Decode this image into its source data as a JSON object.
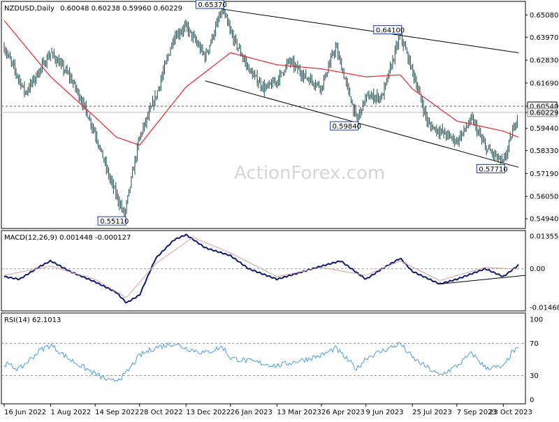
{
  "header": {
    "symbol_line": "NZDUSD,Daily",
    "ohlc": "0.60048 0.60238 0.59960 0.60229",
    "macd_line": "MACD(12,26,9) 0.001448 -0.000127",
    "rsi_line": "RSI(14) 62.1013"
  },
  "watermark": "ActionForex.com",
  "colors": {
    "price_bars": "#1e4a4a",
    "ma": "#e8262c",
    "macd": "#0d1a6e",
    "signal": "#d9a0a0",
    "rsi": "#4a9ed8",
    "trendlines": "#000000",
    "label_border": "#1a3aa0",
    "current_price_box": "#e8e8e8"
  },
  "chart_data": [
    {
      "type": "ohlc",
      "panel": "price",
      "instrument": "NZDUSD",
      "timeframe": "Daily",
      "ylim": [
        0.5449,
        0.6572
      ],
      "y_ticks": [
        "0.65080",
        "0.63970",
        "0.62830",
        "0.61690",
        "0.60540",
        "0.60229",
        "0.59440",
        "0.58330",
        "0.57190",
        "0.56050",
        "0.54940"
      ],
      "x_ticks": [
        "16 Jun 2022",
        "1 Aug 2022",
        "14 Sep 2022",
        "28 Oct 2022",
        "13 Dec 2022",
        "26 Jan 2023",
        "13 Mar 2023",
        "26 Apr 2023",
        "9 Jun 2023",
        "25 Jul 2023",
        "7 Sep 2023",
        "23 Oct 2023"
      ],
      "price_path": [
        [
          "16 Jun 2022",
          0.6345
        ],
        [
          "7 Jul 2022",
          0.612
        ],
        [
          "1 Aug 2022",
          0.632
        ],
        [
          "20 Aug 2022",
          0.62
        ],
        [
          "1 Sep 2022",
          0.608
        ],
        [
          "14 Sep 2022",
          0.592
        ],
        [
          "28 Sep 2022",
          0.57
        ],
        [
          "13 Oct 2022",
          0.5511
        ],
        [
          "28 Oct 2022",
          0.59
        ],
        [
          "13 Nov 2022",
          0.61
        ],
        [
          "1 Dec 2022",
          0.64
        ],
        [
          "13 Dec 2022",
          0.645
        ],
        [
          "1 Jan 2023",
          0.63
        ],
        [
          "18 Jan 2023",
          0.6537
        ],
        [
          "26 Jan 2023",
          0.642
        ],
        [
          "15 Feb 2023",
          0.622
        ],
        [
          "1 Mar 2023",
          0.614
        ],
        [
          "13 Mar 2023",
          0.618
        ],
        [
          "25 Mar 2023",
          0.628
        ],
        [
          "10 Apr 2023",
          0.62
        ],
        [
          "26 Apr 2023",
          0.615
        ],
        [
          "10 May 2023",
          0.635
        ],
        [
          "31 May 2023",
          0.5984
        ],
        [
          "9 Jun 2023",
          0.61
        ],
        [
          "25 Jun 2023",
          0.61
        ],
        [
          "13 Jul 2023",
          0.641
        ],
        [
          "25 Jul 2023",
          0.623
        ],
        [
          "10 Aug 2023",
          0.596
        ],
        [
          "25 Aug 2023",
          0.592
        ],
        [
          "7 Sep 2023",
          0.588
        ],
        [
          "22 Sep 2023",
          0.599
        ],
        [
          "5 Oct 2023",
          0.585
        ],
        [
          "23 Oct 2023",
          0.5771
        ],
        [
          "7 Nov 2023",
          0.6023
        ]
      ],
      "annotations": [
        {
          "text": "0.65370",
          "value": 0.6537,
          "date": "18 Jan 2023"
        },
        {
          "text": "0.64100",
          "value": 0.641,
          "date": "13 Jul 2023"
        },
        {
          "text": "0.59840",
          "value": 0.5984,
          "date": "31 May 2023"
        },
        {
          "text": "0.57710",
          "value": 0.5771,
          "date": "23 Oct 2023"
        },
        {
          "text": "0.55110",
          "value": 0.5511,
          "date": "13 Oct 2022"
        }
      ],
      "moving_average_path": [
        [
          "16 Jun 2022",
          0.648
        ],
        [
          "1 Aug 2022",
          0.62
        ],
        [
          "14 Sep 2022",
          0.6
        ],
        [
          "5 Oct 2022",
          0.59
        ],
        [
          "28 Oct 2022",
          0.586
        ],
        [
          "13 Dec 2022",
          0.615
        ],
        [
          "26 Jan 2023",
          0.632
        ],
        [
          "13 Mar 2023",
          0.626
        ],
        [
          "26 Apr 2023",
          0.624
        ],
        [
          "9 Jun 2023",
          0.62
        ],
        [
          "13 Jul 2023",
          0.621
        ],
        [
          "25 Jul 2023",
          0.614
        ],
        [
          "7 Sep 2023",
          0.598
        ],
        [
          "23 Oct 2023",
          0.593
        ],
        [
          "7 Nov 2023",
          0.59
        ]
      ],
      "trendlines": [
        {
          "from": [
            "18 Jan 2023",
            0.6537
          ],
          "to": [
            "7 Nov 2023",
            0.632
          ]
        },
        {
          "from": [
            "1 Jan 2023",
            0.618
          ],
          "to": [
            "7 Nov 2023",
            0.575
          ]
        }
      ],
      "horizontal_levels": [
        {
          "value": 0.6054,
          "label": "0.60540",
          "style": "dashed"
        },
        {
          "value": 0.60229,
          "label": "0.60229",
          "style": "current"
        }
      ]
    },
    {
      "type": "line",
      "panel": "macd",
      "title": "MACD(12,26,9)",
      "ylim": [
        -0.0158,
        0.0143
      ],
      "y_ticks": [
        "0.013555",
        "0.00",
        "-0.014684"
      ],
      "zero_line": 0.0,
      "series": [
        {
          "name": "MACD",
          "points": [
            [
              "16 Jun 2022",
              -0.003
            ],
            [
              "1 Jul 2022",
              -0.004
            ],
            [
              "22 Jul 2022",
              0.001
            ],
            [
              "1 Aug 2022",
              0.003
            ],
            [
              "20 Aug 2022",
              -0.001
            ],
            [
              "14 Sep 2022",
              -0.005
            ],
            [
              "5 Oct 2022",
              -0.009
            ],
            [
              "15 Oct 2022",
              -0.013
            ],
            [
              "28 Oct 2022",
              -0.01
            ],
            [
              "13 Nov 2022",
              0.004
            ],
            [
              "1 Dec 2022",
              0.011
            ],
            [
              "13 Dec 2022",
              0.013
            ],
            [
              "1 Jan 2023",
              0.008
            ],
            [
              "26 Jan 2023",
              0.005
            ],
            [
              "13 Feb 2023",
              0.0
            ],
            [
              "13 Mar 2023",
              -0.004
            ],
            [
              "26 Apr 2023",
              0.001
            ],
            [
              "15 May 2023",
              0.003
            ],
            [
              "9 Jun 2023",
              -0.004
            ],
            [
              "25 Jun 2023",
              0.0
            ],
            [
              "13 Jul 2023",
              0.004
            ],
            [
              "25 Jul 2023",
              -0.001
            ],
            [
              "21 Aug 2023",
              -0.0058
            ],
            [
              "7 Sep 2023",
              -0.004
            ],
            [
              "5 Oct 2023",
              0.0
            ],
            [
              "23 Oct 2023",
              -0.003
            ],
            [
              "7 Nov 2023",
              0.0014
            ]
          ]
        },
        {
          "name": "Signal",
          "points": [
            [
              "16 Jun 2022",
              -0.0025
            ],
            [
              "1 Aug 2022",
              0.001
            ],
            [
              "14 Sep 2022",
              -0.004
            ],
            [
              "15 Oct 2022",
              -0.011
            ],
            [
              "13 Nov 2022",
              0.002
            ],
            [
              "20 Dec 2022",
              0.012
            ],
            [
              "26 Jan 2023",
              0.006
            ],
            [
              "13 Mar 2023",
              -0.003
            ],
            [
              "26 Apr 2023",
              0.0005
            ],
            [
              "9 Jun 2023",
              -0.0025
            ],
            [
              "13 Jul 2023",
              0.003
            ],
            [
              "21 Aug 2023",
              -0.0045
            ],
            [
              "5 Oct 2023",
              0.0005
            ],
            [
              "7 Nov 2023",
              -0.0001
            ]
          ]
        }
      ],
      "trendlines": [
        {
          "from": [
            "21 Aug 2023",
            -0.0058
          ],
          "to": [
            "7 Nov 2023",
            -0.0025
          ]
        }
      ]
    },
    {
      "type": "line",
      "panel": "rsi",
      "title": "RSI(14)",
      "ylim": [
        0,
        100
      ],
      "y_ticks": [
        "100",
        "70",
        "30",
        "0"
      ],
      "levels": [
        70,
        30
      ],
      "series": [
        {
          "name": "RSI",
          "points": [
            [
              "16 Jun 2022",
              45
            ],
            [
              "1 Jul 2022",
              38
            ],
            [
              "22 Jul 2022",
              62
            ],
            [
              "1 Aug 2022",
              68
            ],
            [
              "20 Aug 2022",
              50
            ],
            [
              "14 Sep 2022",
              32
            ],
            [
              "30 Sep 2022",
              22
            ],
            [
              "13 Oct 2022",
              30
            ],
            [
              "28 Oct 2022",
              55
            ],
            [
              "13 Nov 2022",
              65
            ],
            [
              "1 Dec 2022",
              70
            ],
            [
              "13 Dec 2022",
              64
            ],
            [
              "1 Jan 2023",
              58
            ],
            [
              "18 Jan 2023",
              66
            ],
            [
              "26 Jan 2023",
              52
            ],
            [
              "13 Mar 2023",
              42
            ],
            [
              "26 Apr 2023",
              55
            ],
            [
              "10 May 2023",
              64
            ],
            [
              "31 May 2023",
              38
            ],
            [
              "9 Jun 2023",
              52
            ],
            [
              "13 Jul 2023",
              70
            ],
            [
              "25 Jul 2023",
              52
            ],
            [
              "21 Aug 2023",
              30
            ],
            [
              "7 Sep 2023",
              42
            ],
            [
              "22 Sep 2023",
              58
            ],
            [
              "5 Oct 2023",
              40
            ],
            [
              "23 Oct 2023",
              40
            ],
            [
              "1 Nov 2023",
              60
            ],
            [
              "7 Nov 2023",
              62.1
            ]
          ]
        }
      ]
    }
  ]
}
